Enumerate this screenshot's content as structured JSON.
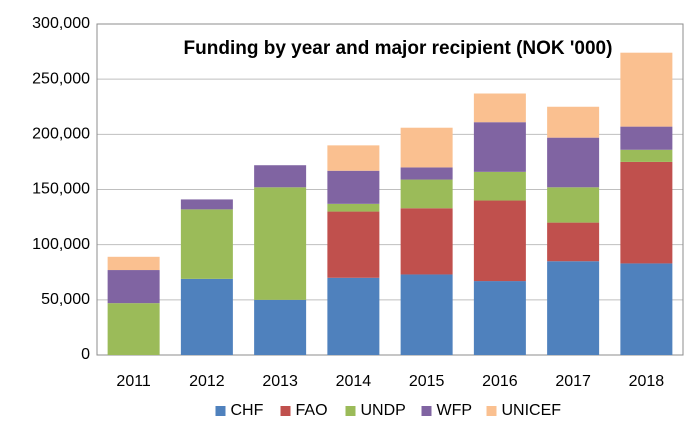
{
  "chart_data": {
    "type": "stacked_bar",
    "title": "Funding by year and major recipient (NOK '000)",
    "categories": [
      "2011",
      "2012",
      "2013",
      "2014",
      "2015",
      "2016",
      "2017",
      "2018"
    ],
    "series": [
      {
        "name": "CHF",
        "color": "#4f81bd",
        "values": [
          0,
          69000,
          50000,
          70000,
          73000,
          67000,
          85000,
          83000
        ]
      },
      {
        "name": "FAO",
        "color": "#c0504d",
        "values": [
          0,
          0,
          0,
          60000,
          60000,
          73000,
          35000,
          92000
        ]
      },
      {
        "name": "UNDP",
        "color": "#9bbb59",
        "values": [
          47000,
          63000,
          102000,
          7000,
          26000,
          26000,
          32000,
          11000
        ]
      },
      {
        "name": "WFP",
        "color": "#8064a2",
        "values": [
          30000,
          9000,
          20000,
          30000,
          11000,
          45000,
          45000,
          21000
        ]
      },
      {
        "name": "UNICEF",
        "color": "#fac090",
        "values": [
          12000,
          0,
          0,
          23000,
          36000,
          26000,
          28000,
          67000
        ]
      }
    ],
    "ylim": [
      0,
      300000
    ],
    "yticks": [
      0,
      {
        "value": 50000,
        "label": "50,000"
      },
      {
        "value": 100000,
        "label": "100,000"
      },
      {
        "value": 150000,
        "label": "150,000"
      },
      {
        "value": 200000,
        "label": "200,000"
      },
      {
        "value": 250000,
        "label": "250,000"
      },
      {
        "value": 300000,
        "label": "300,000"
      }
    ],
    "grid": true,
    "legend": "bottom"
  }
}
